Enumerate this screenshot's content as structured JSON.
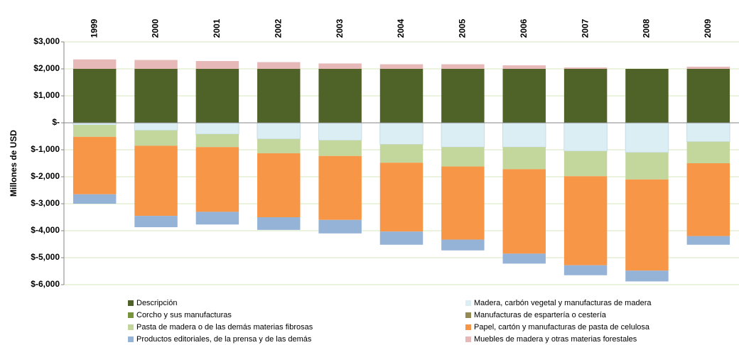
{
  "chart_data": {
    "type": "stacked_bar",
    "y_label": "Millones de USD",
    "categories": [
      "1999",
      "2000",
      "2001",
      "2002",
      "2003",
      "2004",
      "2005",
      "2006",
      "2007",
      "2008",
      "2009"
    ],
    "series": [
      {
        "name": "Descripción",
        "color": "#4f6228",
        "values": [
          2000,
          2000,
          2000,
          2000,
          2000,
          2000,
          2000,
          2000,
          2000,
          2000,
          2000
        ]
      },
      {
        "name": "Madera, carbón vegetal y manufacturas de madera",
        "color": "#dbeef4",
        "values": [
          -80,
          -280,
          -420,
          -600,
          -650,
          -800,
          -900,
          -900,
          -1050,
          -1100,
          -700
        ]
      },
      {
        "name": "Corcho y sus manufacturas",
        "color": "#77933c",
        "values": [
          0,
          0,
          0,
          0,
          0,
          0,
          0,
          0,
          0,
          0,
          0
        ]
      },
      {
        "name": "Manufacturas de espartería o cestería",
        "color": "#948a54",
        "values": [
          0,
          0,
          0,
          0,
          0,
          0,
          0,
          0,
          0,
          0,
          0
        ]
      },
      {
        "name": "Pasta de madera o de las demás materias fibrosas",
        "color": "#c3d69b",
        "values": [
          -440,
          -570,
          -480,
          -530,
          -580,
          -680,
          -720,
          -820,
          -930,
          -1000,
          -800
        ]
      },
      {
        "name": "Papel, cartón y manufacturas de pasta de celulosa",
        "color": "#f79646",
        "values": [
          -2130,
          -2600,
          -2400,
          -2370,
          -2370,
          -2550,
          -2710,
          -3130,
          -3300,
          -3380,
          -2700
        ]
      },
      {
        "name": "Productos editoriales, de la prensa y de las demás",
        "color": "#95b3d7",
        "values": [
          -350,
          -420,
          -470,
          -470,
          -500,
          -490,
          -400,
          -370,
          -370,
          -400,
          -320
        ]
      },
      {
        "name": "Muebles de madera y otras materias forestales",
        "color": "#e6b9b8",
        "values": [
          350,
          330,
          290,
          250,
          200,
          170,
          170,
          130,
          50,
          0,
          80
        ]
      }
    ],
    "ylim": [
      -6000,
      3000
    ],
    "yticks": [
      {
        "value": 3000,
        "label": "$3,000"
      },
      {
        "value": 2000,
        "label": "$2,000"
      },
      {
        "value": 1000,
        "label": "$1,000"
      },
      {
        "value": 0,
        "label": "$-"
      },
      {
        "value": -1000,
        "label": "$-1,000"
      },
      {
        "value": -2000,
        "label": "$-2,000"
      },
      {
        "value": -3000,
        "label": "$-3,000"
      },
      {
        "value": -4000,
        "label": "$-4,000"
      },
      {
        "value": -5000,
        "label": "$-5,000"
      },
      {
        "value": -6000,
        "label": "$-6,000"
      }
    ],
    "grid": true
  }
}
